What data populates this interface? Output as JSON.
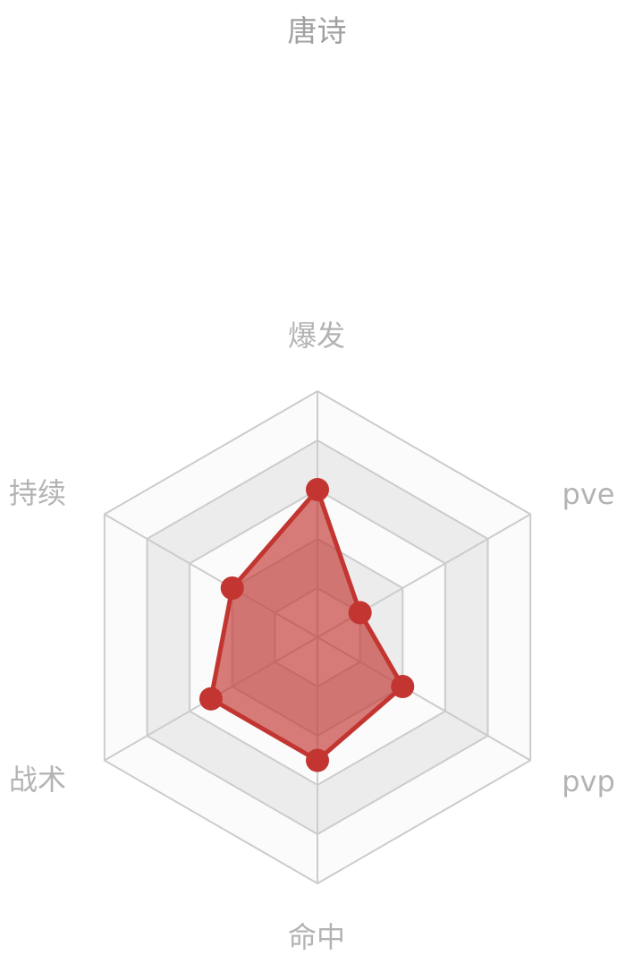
{
  "chart_data": {
    "type": "radar",
    "title": "唐诗",
    "indicators": [
      "爆发",
      "pve",
      "pvp",
      "命中",
      "战术",
      "持续"
    ],
    "max": 5,
    "split_number": 5,
    "series": [
      {
        "values": [
          3,
          1,
          2,
          2.5,
          2.5,
          2
        ]
      }
    ],
    "colors": {
      "series": "#c23531",
      "area": "#c23531",
      "grid_line": "#cccccc",
      "band_light": "#fbfbfb",
      "band_dark": "#ececec",
      "label": "#b3b3b3"
    }
  }
}
